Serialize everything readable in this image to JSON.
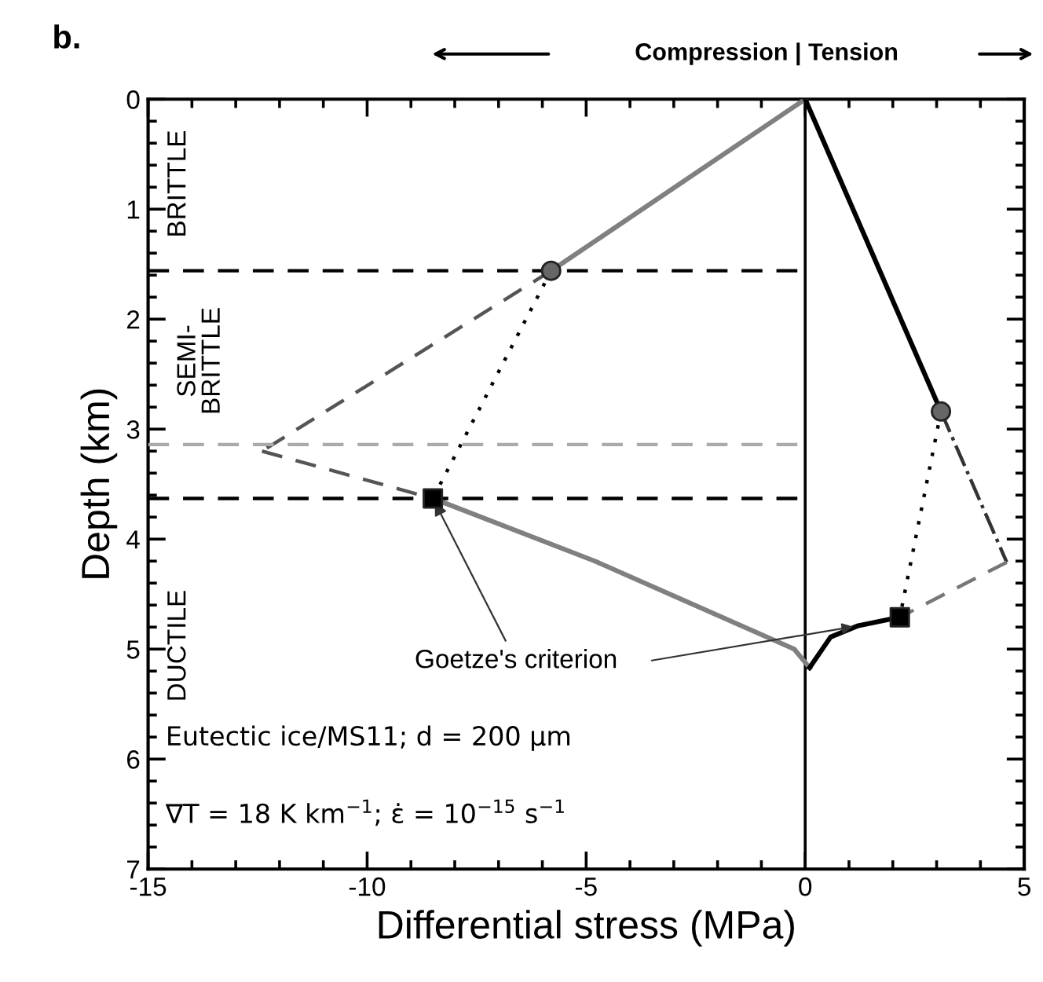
{
  "chart_data": {
    "type": "line",
    "title": "b.",
    "subtitle": "Compression | Tension",
    "xlabel": "Differential stress (MPa)",
    "ylabel": "Depth (km)",
    "xlim": [
      -15,
      5
    ],
    "xticks": [
      -15,
      -10,
      -5,
      0,
      5
    ],
    "ylim": [
      7,
      0
    ],
    "yticks": [
      0,
      1,
      2,
      3,
      4,
      5,
      6,
      7
    ],
    "grid": false,
    "legend": false,
    "series": [
      {
        "color": "#808080",
        "x": [
          0,
          -5.8
        ],
        "values": [
          0,
          1.56
        ],
        "line_style": "solid"
      },
      {
        "color": "#808080",
        "x": [
          -8.5,
          -4.8,
          -0.25,
          0.1
        ],
        "values": [
          3.63,
          4.2,
          5.0,
          5.17
        ],
        "line_style": "solid"
      },
      {
        "color": "#000000",
        "x": [
          0,
          3.1
        ],
        "values": [
          0,
          2.84
        ],
        "line_style": "solid"
      },
      {
        "color": "#000000",
        "x": [
          0.1,
          0.58,
          1.19,
          2.16
        ],
        "values": [
          5.17,
          4.89,
          4.79,
          4.71
        ],
        "line_style": "solid"
      },
      {
        "color": "#000000",
        "x": [
          -5.8,
          -8.5
        ],
        "values": [
          1.56,
          3.63
        ],
        "line_style": "dotted"
      },
      {
        "color": "#000000",
        "x": [
          3.1,
          2.16
        ],
        "values": [
          2.84,
          4.71
        ],
        "line_style": "dotted"
      },
      {
        "color": "#555555",
        "x": [
          -5.8,
          -12.4
        ],
        "values": [
          1.56,
          3.2
        ],
        "line_style": "dashed"
      },
      {
        "color": "#555555",
        "x": [
          -12.4,
          -8.5
        ],
        "values": [
          3.2,
          3.63
        ],
        "line_style": "dashed"
      },
      {
        "color": "#333333",
        "x": [
          3.1,
          4.6
        ],
        "values": [
          2.84,
          4.21
        ],
        "line_style": "dashdot"
      },
      {
        "color": "#777777",
        "x": [
          4.6,
          2.16
        ],
        "values": [
          4.21,
          4.71
        ],
        "line_style": "dashed"
      },
      {
        "color": "#000000",
        "x": [
          -15,
          0
        ],
        "values": [
          1.56,
          1.56
        ],
        "line_style": "dashed"
      },
      {
        "color": "#aaaaaa",
        "x": [
          -15,
          0
        ],
        "values": [
          3.14,
          3.14
        ],
        "line_style": "dashed"
      },
      {
        "color": "#000000",
        "x": [
          -15,
          0
        ],
        "values": [
          3.63,
          3.63
        ],
        "line_style": "dashed"
      },
      {
        "type": "scatter",
        "color": "#666666",
        "x": [
          -5.8,
          3.1
        ],
        "values": [
          1.56,
          2.84
        ],
        "marker": "circle"
      },
      {
        "type": "scatter",
        "color": "#000000",
        "x": [
          -8.5,
          2.16
        ],
        "values": [
          3.63,
          4.71
        ],
        "marker": "square"
      }
    ],
    "ref_lines": [
      {
        "axis": "x",
        "value": 0,
        "color": "#000000",
        "line_style": "solid"
      }
    ],
    "annotations": [
      "BRITTLE",
      "SEMI-\nBRITTLE",
      "DUCTILE",
      {
        "text": "Goetze's criterion",
        "x": -8.5,
        "y": 3.63
      },
      "Eutectic ice/MS11; d = 200 μm",
      "∇T = 18 K km$^{−1}$; ε̇ = 10$^{−15}$ s$^{−1}$"
    ]
  }
}
